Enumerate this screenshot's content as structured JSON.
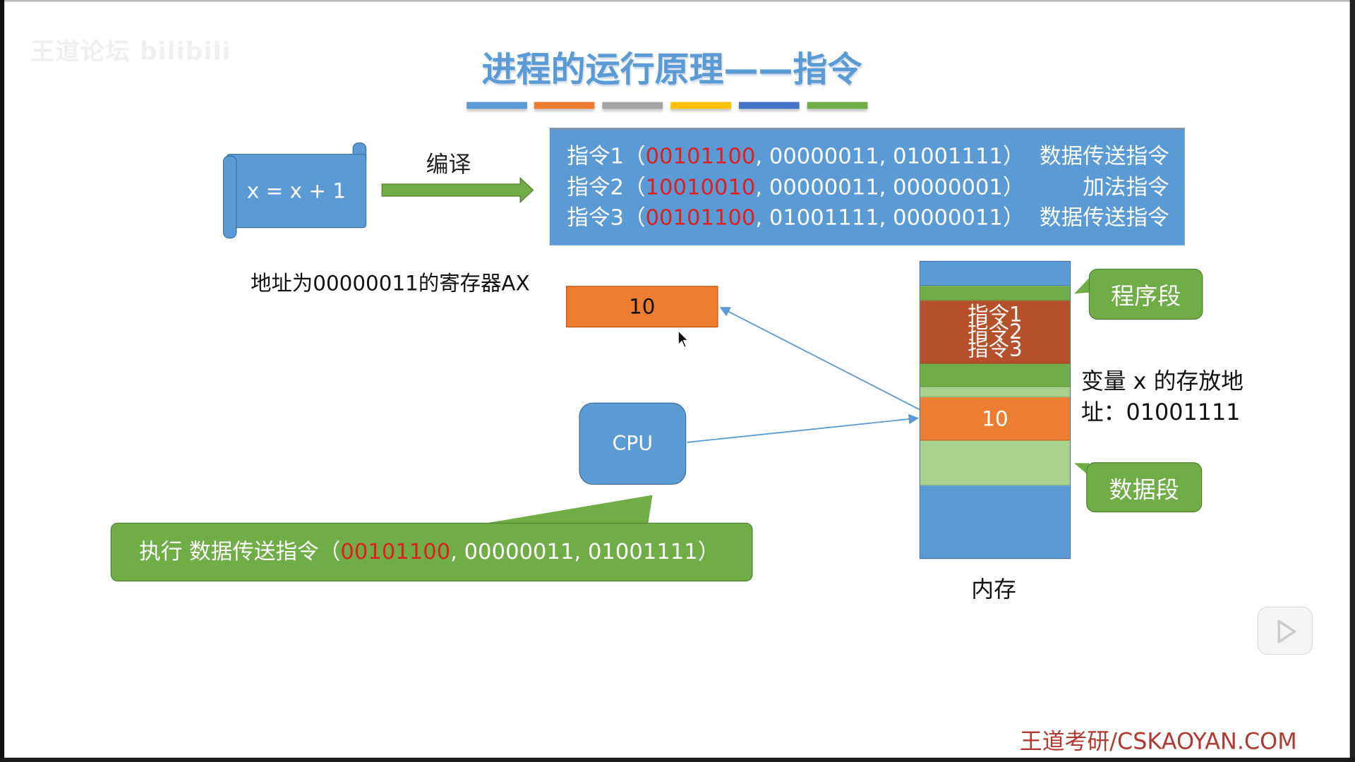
{
  "watermark": "王道论坛 bilibili",
  "title": "进程的运行原理——指令",
  "colors": {
    "bars": [
      "#5b9bd5",
      "#ed7d31",
      "#a5a5a5",
      "#ffc000",
      "#4472c4",
      "#70ad47"
    ],
    "blue": "#5b9bd5",
    "green": "#70ad47",
    "orange": "#ed7d31",
    "red": "#e02020"
  },
  "source_code": "x = x + 1",
  "compile_label": "编译",
  "instructions": [
    {
      "label": "指令1（",
      "opcode": "00101100",
      "operands": ", 00000011, 01001111）",
      "desc": "数据传送指令"
    },
    {
      "label": "指令2（",
      "opcode": "10010010",
      "operands": ", 00000011, 00000001）",
      "desc": "加法指令"
    },
    {
      "label": "指令3（",
      "opcode": "00101100",
      "operands": ", 01001111, 00000011）",
      "desc": "数据传送指令"
    }
  ],
  "register": {
    "label": "地址为00000011的寄存器AX",
    "value": "10"
  },
  "cpu_label": "CPU",
  "execute": {
    "prefix": "执行 数据传送指令（",
    "opcode": "00101100",
    "suffix": ", 00000011, 01001111）"
  },
  "memory": {
    "instr_rows": [
      "指令1",
      "指令2",
      "指令3"
    ],
    "var_value": "10",
    "program_segment": "程序段",
    "data_segment": "数据段",
    "var_label_line1": "变量 x 的存放地",
    "var_label_line2": "址：01001111",
    "label": "内存"
  },
  "brand": "王道考研/CSKAOYAN.COM",
  "icons": {
    "player": "bilibili-play-icon",
    "cursor": "mouse-pointer-icon"
  }
}
